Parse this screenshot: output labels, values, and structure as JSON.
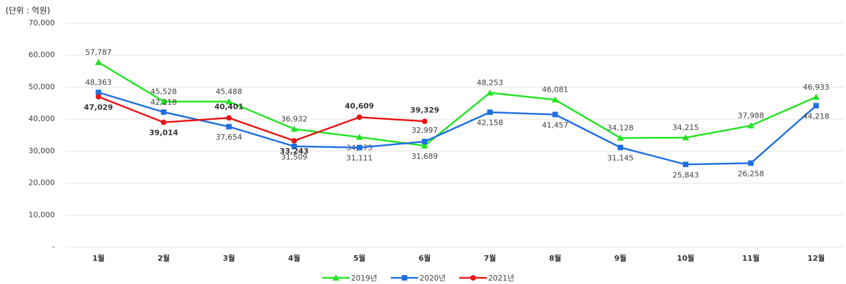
{
  "chart_data": {
    "type": "line",
    "y_label": "(단위 : 억원)",
    "categories": [
      "1월",
      "2월",
      "3월",
      "4월",
      "5월",
      "6월",
      "7월",
      "8월",
      "9월",
      "10월",
      "11월",
      "12월"
    ],
    "ylim": [
      0,
      70000
    ],
    "yticks": [
      {
        "value": 0,
        "label": "-"
      },
      {
        "value": 10000,
        "label": "10,000"
      },
      {
        "value": 20000,
        "label": "20,000"
      },
      {
        "value": 30000,
        "label": "30,000"
      },
      {
        "value": 40000,
        "label": "40,000"
      },
      {
        "value": 50000,
        "label": "50,000"
      },
      {
        "value": 60000,
        "label": "60,000"
      },
      {
        "value": 70000,
        "label": "70,000"
      }
    ],
    "grid": true,
    "legend": "bottom",
    "series": [
      {
        "name": "2019년",
        "color": "#22e322",
        "marker": "triangle",
        "values": [
          57787,
          45528,
          45488,
          36932,
          34375,
          31689,
          48253,
          46081,
          34128,
          34215,
          37988,
          46933
        ],
        "value_labels": [
          "57,787",
          "45,528",
          "45,488",
          "36,932",
          "34,375",
          "31,689",
          "48,253",
          "46,081",
          "34,128",
          "34,215",
          "37,988",
          "46,933"
        ]
      },
      {
        "name": "2020년",
        "color": "#1f6fe0",
        "marker": "square",
        "values": [
          48363,
          42218,
          37654,
          31509,
          31111,
          32997,
          42158,
          41457,
          31145,
          25843,
          26258,
          44218
        ],
        "value_labels": [
          "48,363",
          "42,218",
          "37,654",
          "31,509",
          "31,111",
          "32,997",
          "42,158",
          "41,457",
          "31,145",
          "25,843",
          "26,258",
          "44,218"
        ]
      },
      {
        "name": "2021년",
        "color": "#e81414",
        "marker": "circle",
        "values": [
          47029,
          39014,
          40401,
          33243,
          40609,
          39329,
          null,
          null,
          null,
          null,
          null,
          null
        ],
        "value_labels": [
          "47,029",
          "39,014",
          "40,401",
          "33,243",
          "40,609",
          "39,329",
          null,
          null,
          null,
          null,
          null,
          null
        ]
      }
    ]
  }
}
